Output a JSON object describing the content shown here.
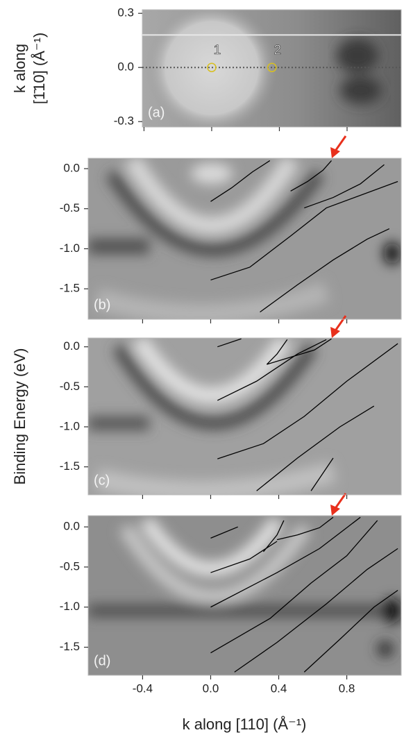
{
  "figure": {
    "x_label": "k along [110] (Å⁻¹)",
    "y_label": "Binding Energy  (eV)"
  },
  "chart_data": [
    {
      "type": "line",
      "panel_label": "(a)",
      "y_label": [
        "k along",
        "[1̄10] (Å⁻¹)"
      ],
      "xlim": [
        -0.41,
        1.12
      ],
      "ylim": [
        -0.33,
        0.32
      ],
      "xticks": [
        -0.4,
        0,
        0.4,
        0.8
      ],
      "yticks": [
        0.3,
        {
          "value": 0,
          "label": "0.0"
        },
        -0.3
      ],
      "hlines": [
        {
          "y": 0.18,
          "color": "#e8e8e8",
          "dash": "none"
        },
        {
          "y": 0,
          "color": "#555",
          "dash": "2 3"
        }
      ],
      "points": [
        {
          "label": "1",
          "x": 0,
          "y": 0,
          "color": "#d8c020"
        },
        {
          "label": "2",
          "x": 0.356,
          "y": 0,
          "color": "#d8c020"
        }
      ],
      "series": []
    },
    {
      "type": "line",
      "panel_label": "(b)",
      "xlim": [
        -0.72,
        1.12
      ],
      "ylim": [
        -1.88,
        0.13
      ],
      "xticks": [
        -0.4,
        0,
        0.4,
        0.8
      ],
      "yticks": [
        {
          "value": 0,
          "label": "0.0"
        },
        -0.5,
        {
          "value": -1,
          "label": "-1.0"
        },
        -1.5
      ],
      "line_color": "#000",
      "series": [
        {
          "x": [
            0,
            0.123,
            0.246,
            0.348
          ],
          "values": [
            -0.41,
            -0.24,
            -0.04,
            0.1
          ]
        },
        {
          "x": [
            0.47,
            0.57,
            0.66,
            0.71
          ],
          "values": [
            -0.28,
            -0.16,
            -0.02,
            0.1
          ]
        },
        {
          "x": [
            0.55,
            0.72,
            0.88,
            1.02
          ],
          "values": [
            -0.49,
            -0.36,
            -0.19,
            0.05
          ]
        },
        {
          "x": [
            0,
            0.23,
            0.47,
            0.68,
            1.1
          ],
          "values": [
            -1.39,
            -1.23,
            -0.84,
            -0.49,
            -0.16
          ]
        },
        {
          "x": [
            0.29,
            0.51,
            0.72,
            0.92,
            1.05
          ],
          "values": [
            -1.79,
            -1.45,
            -1.14,
            -0.88,
            -0.75
          ]
        }
      ]
    },
    {
      "type": "line",
      "panel_label": "(c)",
      "xlim": [
        -0.72,
        1.12
      ],
      "ylim": [
        -1.85,
        0.11
      ],
      "xticks": [
        -0.4,
        0,
        0.4,
        0.8
      ],
      "yticks": [
        {
          "value": 0,
          "label": "0.0"
        },
        -0.5,
        {
          "value": -1,
          "label": "-1.0"
        },
        -1.5
      ],
      "line_color": "#000",
      "series": [
        {
          "x": [
            0.04,
            0.18
          ],
          "values": [
            0,
            0.1
          ]
        },
        {
          "x": [
            0.33,
            0.47,
            0.61,
            0.71
          ],
          "values": [
            -0.22,
            -0.13,
            -0.04,
            0.1
          ]
        },
        {
          "x": [
            0.33,
            0.39,
            0.45
          ],
          "values": [
            -0.22,
            -0.09,
            0.09
          ]
        },
        {
          "x": [
            0.04,
            0.27,
            0.51,
            0.68
          ],
          "values": [
            -0.67,
            -0.43,
            -0.09,
            0.09
          ]
        },
        {
          "x": [
            0.04,
            0.31,
            0.55,
            0.8,
            1.1
          ],
          "values": [
            -1.4,
            -1.21,
            -0.87,
            -0.43,
            0.04
          ]
        },
        {
          "x": [
            0.27,
            0.51,
            0.76,
            0.96
          ],
          "values": [
            -1.8,
            -1.39,
            -1.0,
            -0.74
          ]
        },
        {
          "x": [
            0.59,
            0.72
          ],
          "values": [
            -1.8,
            -1.39
          ]
        }
      ]
    },
    {
      "type": "line",
      "panel_label": "(d)",
      "xlim": [
        -0.72,
        1.12
      ],
      "ylim": [
        -1.85,
        0.14
      ],
      "xticks": [
        -0.4,
        {
          "value": 0,
          "label": "0.0"
        },
        0.4,
        0.8
      ],
      "yticks": [
        {
          "value": 0,
          "label": "0.0"
        },
        -0.5,
        {
          "value": -1,
          "label": "-1.0"
        },
        -1.5
      ],
      "line_color": "#000",
      "series": [
        {
          "x": [
            0,
            0.16
          ],
          "values": [
            -0.14,
            0
          ]
        },
        {
          "x": [
            0.31,
            0.39,
            0.43
          ],
          "values": [
            -0.31,
            -0.1,
            0.08
          ]
        },
        {
          "x": [
            0.39,
            0.51,
            0.64,
            0.72
          ],
          "values": [
            -0.16,
            -0.1,
            -0.01,
            0.12
          ]
        },
        {
          "x": [
            0,
            0.23,
            0.39
          ],
          "values": [
            -0.57,
            -0.4,
            -0.18
          ]
        },
        {
          "x": [
            0,
            0.39,
            0.64,
            0.88
          ],
          "values": [
            -1.0,
            -0.57,
            -0.27,
            0.12
          ]
        },
        {
          "x": [
            0,
            0.35,
            0.59,
            0.8,
            0.98
          ],
          "values": [
            -1.57,
            -1.14,
            -0.7,
            -0.36,
            0.08
          ]
        },
        {
          "x": [
            0.14,
            0.39,
            0.68,
            0.92,
            1.1
          ],
          "values": [
            -1.81,
            -1.44,
            -0.96,
            -0.53,
            -0.27
          ]
        },
        {
          "x": [
            0.55,
            0.76,
            0.96,
            1.1
          ],
          "values": [
            -1.81,
            -1.4,
            -1.0,
            -0.79
          ]
        }
      ]
    }
  ]
}
